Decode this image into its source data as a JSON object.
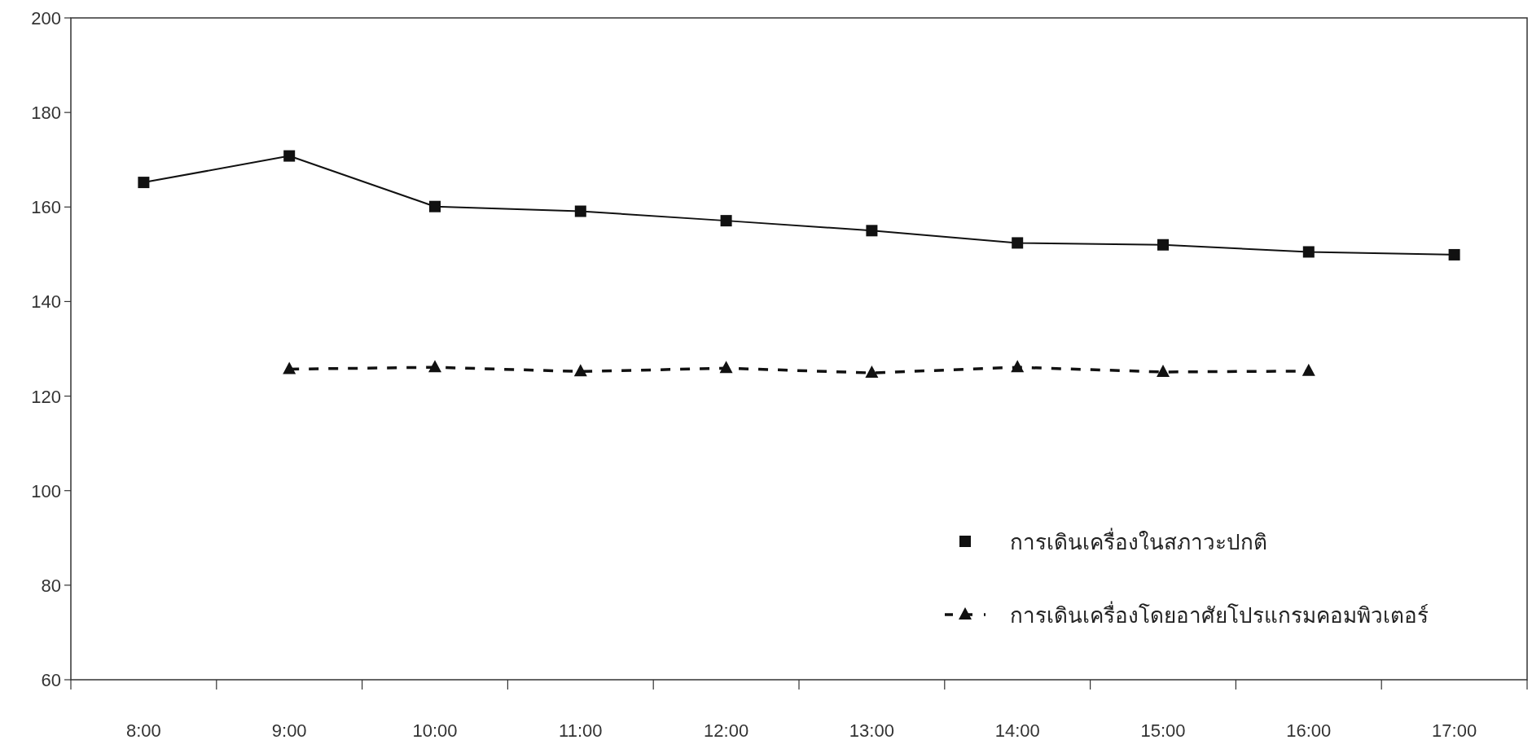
{
  "chart_data": {
    "type": "line",
    "categories": [
      "8:00",
      "9:00",
      "10:00",
      "11:00",
      "12:00",
      "13:00",
      "14:00",
      "15:00",
      "16:00",
      "17:00"
    ],
    "ylim": [
      60,
      200
    ],
    "yticks": [
      60,
      80,
      100,
      120,
      140,
      160,
      180,
      200
    ],
    "grid": false,
    "legend": "bottom right",
    "series": [
      {
        "name": "การเดินเครื่องในสภาวะปกติ",
        "color": "#111111",
        "marker": "square",
        "line_style": "solid",
        "values": [
          165.2,
          170.8,
          160.1,
          159.1,
          157.1,
          155.0,
          152.4,
          152.0,
          150.5,
          149.9
        ]
      },
      {
        "name": "การเดินเครื่องโดยอาศัยโปรแกรมคอมพิวเตอร์",
        "color": "#111111",
        "marker": "triangle",
        "line_style": "dashed",
        "values": [
          null,
          125.7,
          126.1,
          125.2,
          125.9,
          124.9,
          126.1,
          125.1,
          125.3,
          null
        ]
      }
    ]
  }
}
